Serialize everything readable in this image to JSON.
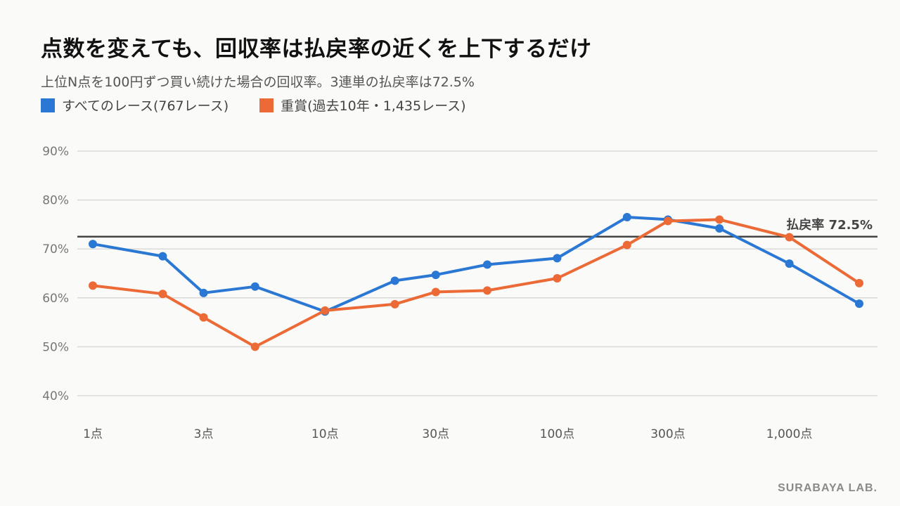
{
  "title": "点数を変えても、回収率は払戻率の近くを上下するだけ",
  "subtitle": "上位N点を100円ずつ買い続けた場合の回収率。3連単の払戻率は72.5%",
  "footer": "SURABAYA LAB.",
  "chart_data": {
    "type": "line",
    "x": [
      1,
      2,
      3,
      5,
      10,
      20,
      30,
      50,
      100,
      200,
      300,
      500,
      1000,
      2000
    ],
    "x_tick_values": [
      1,
      3,
      10,
      30,
      100,
      300,
      1000
    ],
    "x_tick_labels": [
      "1点",
      "3点",
      "10点",
      "30点",
      "100点",
      "300点",
      "1,000点"
    ],
    "x_scale": "log",
    "ylim": [
      40,
      90
    ],
    "y_ticks": [
      40,
      50,
      60,
      70,
      80,
      90
    ],
    "y_tick_labels": [
      "40%",
      "50%",
      "60%",
      "70%",
      "80%",
      "90%"
    ],
    "grid": true,
    "legend_position": "top-left",
    "series": [
      {
        "name": "すべてのレース(767レース)",
        "color": "#2a77d4",
        "values": [
          71.0,
          68.5,
          61.0,
          62.3,
          57.2,
          63.5,
          64.7,
          66.8,
          68.1,
          76.5,
          76.0,
          74.2,
          67.0,
          58.8
        ]
      },
      {
        "name": "重賞(過去10年・1,435レース)",
        "color": "#eb6a36",
        "values": [
          62.5,
          60.8,
          56.0,
          50.0,
          57.4,
          58.7,
          61.2,
          61.5,
          64.0,
          70.8,
          75.7,
          76.0,
          72.4,
          63.0
        ]
      }
    ],
    "reference_line": {
      "value": 72.5,
      "label": "払戻率 72.5%",
      "color": "#444444"
    }
  }
}
